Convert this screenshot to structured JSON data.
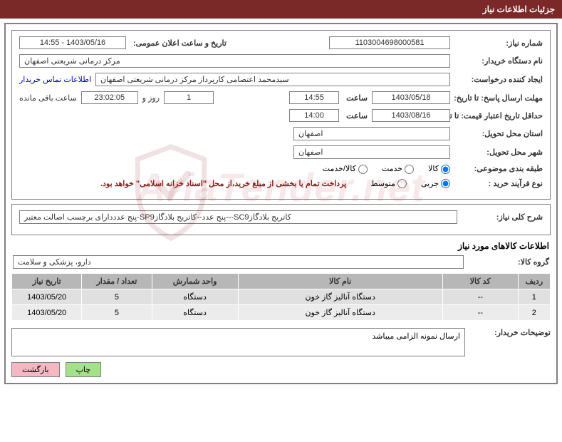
{
  "header": {
    "title": "جزئیات اطلاعات نیاز"
  },
  "fields": {
    "need_no_lbl": "شماره نیاز:",
    "need_no": "1103004698000581",
    "announce_lbl": "تاریخ و ساعت اعلان عمومی:",
    "announce_val": "1403/05/16 - 14:55",
    "buyer_org_lbl": "نام دستگاه خریدار:",
    "buyer_org": "مرکز درمانی شریعتی اصفهان",
    "requester_lbl": "ایجاد کننده درخواست:",
    "requester": "سیدمحمد اعتصامی کارپرداز مرکز درمانی شریعتی اصفهان",
    "contact_link": "اطلاعات تماس خریدار",
    "deadline_lbl": "مهلت ارسال پاسخ: تا تاریخ:",
    "deadline_date": "1403/05/18",
    "time_lbl": "ساعت",
    "deadline_time": "14:55",
    "days_val": "1",
    "days_lbl": "روز و",
    "countdown": "23:02:05",
    "remain_lbl": "ساعت باقی مانده",
    "validity_lbl": "حداقل تاریخ اعتبار قیمت: تا تاریخ:",
    "validity_date": "1403/08/16",
    "validity_time": "14:00",
    "province_lbl": "استان محل تحویل:",
    "province": "اصفهان",
    "city_lbl": "شهر محل تحویل:",
    "city": "اصفهان",
    "class_lbl": "طبقه بندی موضوعی:",
    "class_opts": {
      "kala": "کالا",
      "khedmat": "خدمت",
      "both": "کالا/خدمت"
    },
    "class_selected": "kala",
    "proc_lbl": "نوع فرآیند خرید :",
    "proc_opts": {
      "jozi": "جزیی",
      "motavaset": "متوسط"
    },
    "proc_selected": "jozi",
    "proc_note": "پرداخت تمام یا بخشی از مبلغ خرید،از محل \"اسناد خزانه اسلامی\" خواهد بود.",
    "desc_lbl": "شرح کلی نیاز:",
    "desc": "کاتریج بلادگازSC9---پنج عدد--کاتریج بلادگازSP9-پنج عدددارای برچسب اصالت معتبر",
    "goods_section": "اطلاعات کالاهای مورد نیاز",
    "group_lbl": "گروه کالا:",
    "group": "دارو، پزشکی و سلامت",
    "buyer_notes_lbl": "توضیحات خریدار:",
    "buyer_notes": "ارسال نمونه الزامی میباشد"
  },
  "table": {
    "headers": [
      "ردیف",
      "کد کالا",
      "نام کالا",
      "واحد شمارش",
      "تعداد / مقدار",
      "تاریخ نیاز"
    ],
    "col_widths": [
      "6%",
      "14%",
      "38%",
      "16%",
      "13%",
      "13%"
    ],
    "rows": [
      [
        "1",
        "--",
        "دستگاه آنالیز گاز خون",
        "دستگاه",
        "5",
        "1403/05/20"
      ],
      [
        "2",
        "--",
        "دستگاه آنالیز گاز خون",
        "دستگاه",
        "5",
        "1403/05/20"
      ]
    ]
  },
  "buttons": {
    "print": "چاپ",
    "back": "بازگشت"
  },
  "watermark": "AriaTender.net",
  "style": {
    "header_bg": "#7a2828",
    "border": "#808080",
    "th_bg": "#b7b7b7",
    "row_even": "#ececec",
    "row_odd": "#e0e0e0",
    "btn_green": "#a4e28a",
    "btn_pink": "#f5b8c2",
    "link": "#0000cc"
  }
}
